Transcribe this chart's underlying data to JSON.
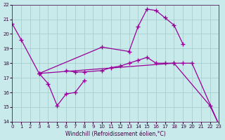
{
  "xlabel": "Windchill (Refroidissement éolien,°C)",
  "bg_color": "#c8eaea",
  "grid_color": "#a0c8c8",
  "line_color": "#990099",
  "xlim": [
    0,
    23
  ],
  "ylim": [
    14,
    22
  ],
  "yticks": [
    14,
    15,
    16,
    17,
    18,
    19,
    20,
    21,
    22
  ],
  "xticks": [
    0,
    1,
    2,
    3,
    4,
    5,
    6,
    7,
    8,
    9,
    10,
    11,
    12,
    13,
    14,
    15,
    16,
    17,
    18,
    19,
    20,
    21,
    22,
    23
  ],
  "series1_x": [
    0,
    1,
    3,
    10,
    13,
    14,
    15,
    16,
    17,
    18,
    19
  ],
  "series1_y": [
    20.7,
    19.6,
    17.3,
    19.1,
    18.8,
    20.5,
    21.7,
    21.6,
    21.1,
    20.6,
    19.3
  ],
  "series2_x": [
    3,
    18,
    22,
    23
  ],
  "series2_y": [
    17.3,
    18.0,
    15.1,
    13.8
  ],
  "series3_x": [
    3,
    4,
    5,
    6,
    7,
    8
  ],
  "series3_y": [
    17.3,
    16.6,
    15.1,
    15.9,
    16.0,
    16.8
  ],
  "series4_x": [
    6,
    7,
    8,
    10,
    11,
    12,
    13,
    14,
    15,
    16,
    17,
    18,
    19,
    20,
    23
  ],
  "series4_y": [
    17.5,
    17.4,
    17.4,
    17.5,
    17.7,
    17.8,
    18.0,
    18.2,
    18.4,
    18.0,
    18.0,
    18.0,
    18.0,
    18.0,
    13.8
  ]
}
